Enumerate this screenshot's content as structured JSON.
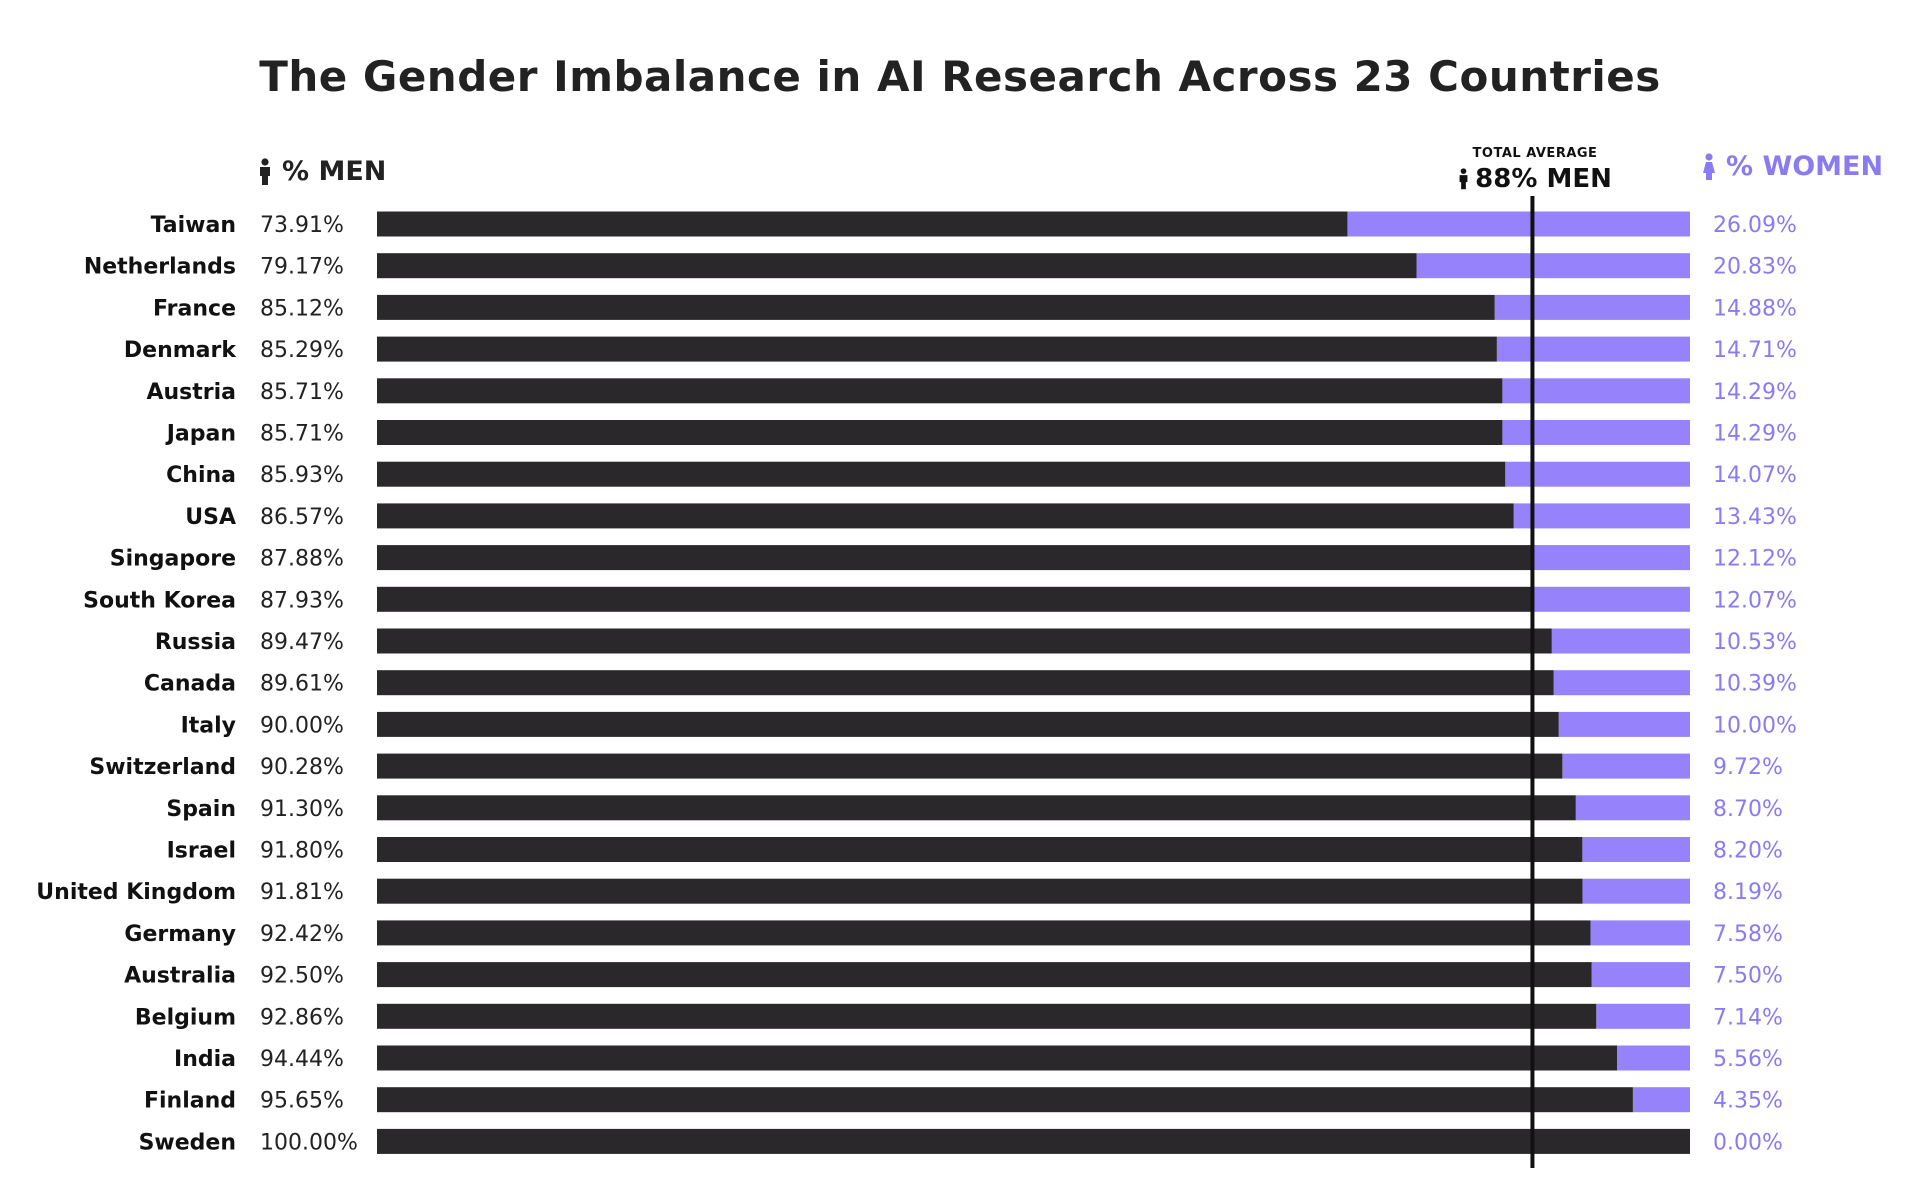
{
  "chart_data": {
    "type": "bar",
    "stacked": true,
    "orientation": "horizontal",
    "title": "The Gender Imbalance in AI Research Across 23 Countries",
    "men_header": "% MEN",
    "women_header": "% WOMEN",
    "average_caption": "TOTAL AVERAGE",
    "average_value_label": "88% MEN",
    "average_value": 88,
    "xlim": [
      0,
      100
    ],
    "categories": [
      "Taiwan",
      "Netherlands",
      "France",
      "Denmark",
      "Austria",
      "Japan",
      "China",
      "USA",
      "Singapore",
      "South Korea",
      "Russia",
      "Canada",
      "Italy",
      "Switzerland",
      "Spain",
      "Israel",
      "United Kingdom",
      "Germany",
      "Australia",
      "Belgium",
      "India",
      "Finland",
      "Sweden"
    ],
    "series": [
      {
        "name": "% MEN",
        "color": "#2b282b",
        "values": [
          73.91,
          79.17,
          85.12,
          85.29,
          85.71,
          85.71,
          85.93,
          86.57,
          87.88,
          87.93,
          89.47,
          89.61,
          90.0,
          90.28,
          91.3,
          91.8,
          91.81,
          92.42,
          92.5,
          92.86,
          94.44,
          95.65,
          100.0
        ],
        "labels": [
          "73.91%",
          "79.17%",
          "85.12%",
          "85.29%",
          "85.71%",
          "85.71%",
          "85.93%",
          "86.57%",
          "87.88%",
          "87.93%",
          "89.47%",
          "89.61%",
          "90.00%",
          "90.28%",
          "91.30%",
          "91.80%",
          "91.81%",
          "92.42%",
          "92.50%",
          "92.86%",
          "94.44%",
          "95.65%",
          "100.00%"
        ]
      },
      {
        "name": "% WOMEN",
        "color": "#9683fb",
        "values": [
          26.09,
          20.83,
          14.88,
          14.71,
          14.29,
          14.29,
          14.07,
          13.43,
          12.12,
          12.07,
          10.53,
          10.39,
          10.0,
          9.72,
          8.7,
          8.2,
          8.19,
          7.58,
          7.5,
          7.14,
          5.56,
          4.35,
          0.0
        ],
        "labels": [
          "26.09%",
          "20.83%",
          "14.88%",
          "14.71%",
          "14.29%",
          "14.29%",
          "14.07%",
          "13.43%",
          "12.12%",
          "12.07%",
          "10.53%",
          "10.39%",
          "10.00%",
          "9.72%",
          "8.70%",
          "8.20%",
          "8.19%",
          "7.58%",
          "7.50%",
          "7.14%",
          "5.56%",
          "4.35%",
          "0.00%"
        ]
      }
    ],
    "colors": {
      "men": "#2b282b",
      "women": "#9683fb",
      "women_text": "#8a7bf0",
      "average_line": "#111111"
    }
  }
}
